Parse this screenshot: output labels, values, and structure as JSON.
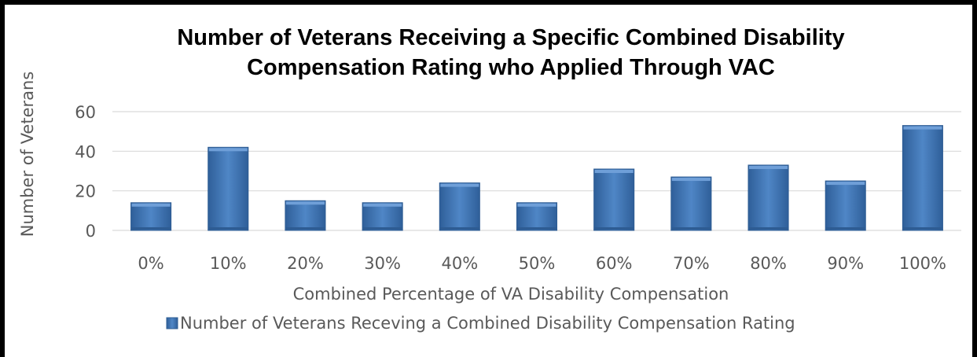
{
  "chart_data": {
    "type": "bar",
    "title_line1": "Number of Veterans Receiving a Specific Combined Disability",
    "title_line2": "Compensation Rating who Applied Through VAC",
    "xlabel": "Combined Percentage of VA Disability Compensation",
    "ylabel": "Number of Veterans",
    "categories": [
      "0%",
      "10%",
      "20%",
      "30%",
      "40%",
      "50%",
      "60%",
      "70%",
      "80%",
      "90%",
      "100%"
    ],
    "series": [
      {
        "name": "Number of Veterans Receving a Combined Disability Compensation Rating",
        "values": [
          14,
          42,
          15,
          14,
          24,
          14,
          31,
          27,
          33,
          25,
          53
        ]
      }
    ],
    "ylim": [
      0,
      60
    ],
    "yticks": [
      "0",
      "20",
      "40",
      "60"
    ],
    "grid": true,
    "legend": "bottom",
    "colors": {
      "bar": "#4a7ebb",
      "bar_dark": "#2e5c93",
      "bar_light": "#6f9fd8",
      "grid": "#d9d9d9",
      "text": "#595959"
    }
  }
}
